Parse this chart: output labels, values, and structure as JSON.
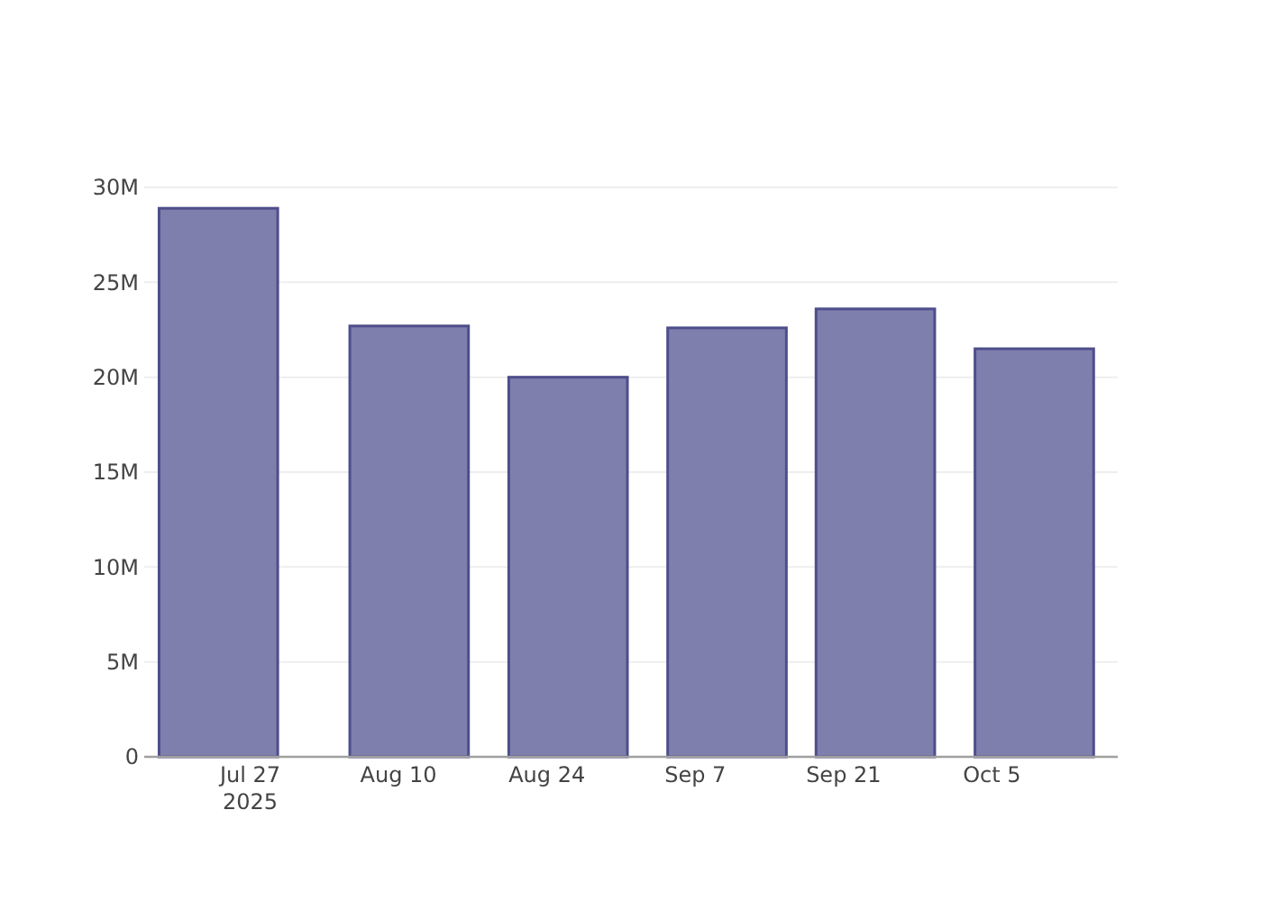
{
  "chart_data": {
    "type": "bar",
    "x": [
      "2025-07-24",
      "2025-08-11",
      "2025-08-26",
      "2025-09-10",
      "2025-09-24",
      "2025-10-09"
    ],
    "values": [
      28900000,
      22700000,
      20000000,
      22600000,
      23600000,
      21500000
    ],
    "color": "#7f7fae",
    "xlim": [
      "2025-07-17",
      "2025-10-16T21:00"
    ],
    "xticks": [
      {
        "value": "2025-07-27",
        "label": "Jul 27\n2025"
      },
      {
        "value": "2025-08-10",
        "label": "Aug 10"
      },
      {
        "value": "2025-08-24",
        "label": "Aug 24"
      },
      {
        "value": "2025-09-07",
        "label": "Sep 7"
      },
      {
        "value": "2025-09-21",
        "label": "Sep 21"
      },
      {
        "value": "2025-10-05",
        "label": "Oct 5"
      }
    ],
    "ylim": [
      0,
      30000000
    ],
    "yticks": [
      0,
      {
        "value": 5000000,
        "label": "5M"
      },
      {
        "value": 10000000,
        "label": "10M"
      },
      {
        "value": 15000000,
        "label": "15M"
      },
      {
        "value": 20000000,
        "label": "20M"
      },
      {
        "value": 25000000,
        "label": "25M"
      },
      {
        "value": 30000000,
        "label": "30M"
      }
    ],
    "grid": "y"
  }
}
